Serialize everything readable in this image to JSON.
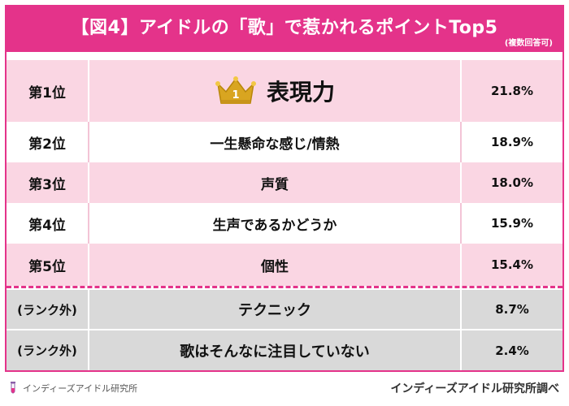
{
  "header": {
    "title": "【図4】アイドルの「歌」で惹かれるポイントTop5",
    "note": "(複数回答可)"
  },
  "rows": [
    {
      "rank": "第1位",
      "item": "表現力",
      "pct": "21.8%",
      "badge": "1"
    },
    {
      "rank": "第2位",
      "item": "一生懸命な感じ/情熱",
      "pct": "18.9%"
    },
    {
      "rank": "第3位",
      "item": "声質",
      "pct": "18.0%"
    },
    {
      "rank": "第4位",
      "item": "生声であるかどうか",
      "pct": "15.9%"
    },
    {
      "rank": "第5位",
      "item": "個性",
      "pct": "15.4%"
    },
    {
      "rank": "(ランク外)",
      "item": "テクニック",
      "pct": "8.7%"
    },
    {
      "rank": "(ランク外)",
      "item": "歌はそんなに注目していない",
      "pct": "2.4%"
    }
  ],
  "footer": {
    "left": "インディーズアイドル研究所",
    "right": "インディーズアイドル研究所調べ"
  },
  "colors": {
    "accent": "#e4338a",
    "pink_row": "#fad6e3",
    "gray_row": "#d9d9d9",
    "crown": "#d9a520"
  },
  "icons": {
    "crown": "crown-icon",
    "logo": "test-tube-icon"
  }
}
